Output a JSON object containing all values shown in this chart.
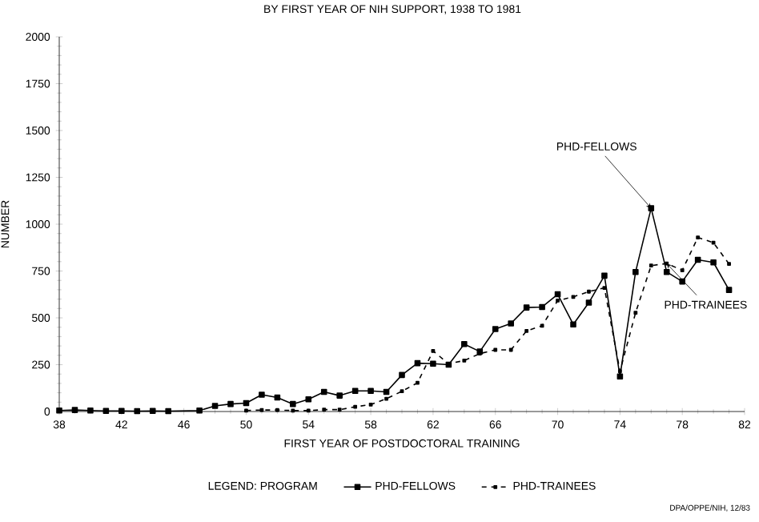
{
  "chart_data": {
    "type": "line",
    "title": "BY FIRST YEAR OF NIH SUPPORT, 1938 TO 1981",
    "xlabel": "FIRST YEAR OF POSTDOCTORAL TRAINING",
    "ylabel": "NUMBER",
    "legend_title": "LEGEND: PROGRAM",
    "legend": "bottom",
    "marker": "square",
    "xlim": [
      38,
      82
    ],
    "xticks": [
      38,
      42,
      46,
      50,
      54,
      58,
      62,
      66,
      70,
      74,
      78,
      82
    ],
    "ylim": [
      0,
      2000
    ],
    "yticks": [
      0,
      250,
      500,
      750,
      1000,
      1250,
      1500,
      1750,
      2000
    ],
    "series": [
      {
        "name": "PHD-FELLOWS",
        "color": "#000000",
        "line_style": "solid",
        "x": [
          38,
          39,
          40,
          41,
          42,
          43,
          44,
          45,
          47,
          48,
          49,
          50,
          51,
          52,
          53,
          54,
          55,
          56,
          57,
          58,
          59,
          60,
          61,
          62,
          63,
          64,
          65,
          66,
          67,
          68,
          69,
          70,
          71,
          72,
          73,
          74,
          75,
          76,
          77,
          78,
          79,
          80,
          81
        ],
        "values": [
          5,
          8,
          5,
          3,
          3,
          2,
          3,
          2,
          5,
          30,
          40,
          45,
          90,
          75,
          40,
          65,
          105,
          85,
          110,
          110,
          105,
          195,
          258,
          255,
          250,
          360,
          320,
          440,
          470,
          555,
          558,
          626,
          465,
          581,
          725,
          187,
          745,
          1085,
          745,
          694,
          810,
          796,
          649
        ]
      },
      {
        "name": "PHD-TRAINEES",
        "color": "#000000",
        "line_style": "dashed",
        "x": [
          50,
          51,
          52,
          53,
          54,
          55,
          56,
          57,
          58,
          59,
          60,
          61,
          62,
          63,
          64,
          65,
          66,
          67,
          68,
          69,
          70,
          71,
          72,
          73,
          74,
          75,
          76,
          77,
          78,
          79,
          80,
          81
        ],
        "values": [
          5,
          8,
          8,
          5,
          5,
          10,
          10,
          25,
          37,
          68,
          108,
          153,
          323,
          255,
          272,
          309,
          329,
          329,
          430,
          458,
          592,
          612,
          640,
          660,
          215,
          527,
          779,
          790,
          754,
          929,
          901,
          788
        ]
      }
    ],
    "annotations": [
      {
        "text": "PHD-FELLOWS",
        "x": 76,
        "y": 1085
      },
      {
        "text": "PHD-TRAINEES",
        "x": 77,
        "y": 790
      },
      "DPA/OPPE/NIH, 12/83"
    ]
  }
}
